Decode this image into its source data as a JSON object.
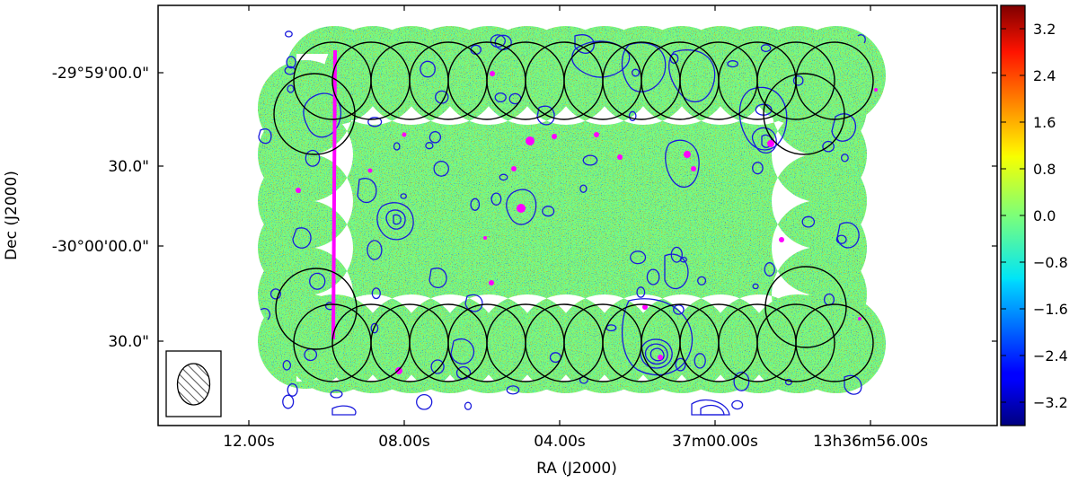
{
  "chart_data": {
    "type": "heatmap",
    "title": "",
    "xlabel": "RA (J2000)",
    "ylabel": "Dec (J2000)",
    "x_tick_labels": [
      "12.00s",
      "08.00s",
      "04.00s",
      "37m00.00s",
      "13h36m56.00s"
    ],
    "y_tick_labels": [
      "-29°59'00.0\"",
      "30.0\"",
      "-30°00'00.0\"",
      "30.0\""
    ],
    "colorbar": {
      "colormap": "jet",
      "range": [
        -3.6,
        3.6
      ],
      "ticks": [
        3.2,
        2.4,
        1.6,
        0.8,
        0.0,
        -0.8,
        -1.6,
        -2.4,
        -3.2
      ],
      "tick_labels": [
        "3.2",
        "2.4",
        "1.6",
        "0.8",
        "0.0",
        "−0.8",
        "−1.6",
        "−2.4",
        "−3.2"
      ]
    },
    "overlays": {
      "contour_color": "#1a1adc",
      "source_marker_color": "#ff00ff",
      "pointing_circle_color": "#000000",
      "pointing_rows": 2,
      "pointings_per_row": 14,
      "beam_ellipse": "hatched"
    },
    "grid": false
  }
}
